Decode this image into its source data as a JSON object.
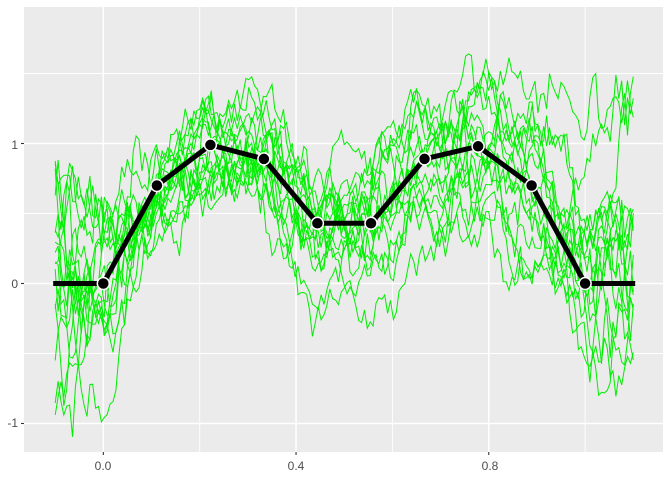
{
  "chart_data": {
    "type": "line",
    "title": "",
    "xlabel": "",
    "ylabel": "",
    "grid": "on",
    "legend": "none",
    "colors": {
      "outer_bg": "#FFFFFF",
      "panel_bg": "#EBEBEB",
      "grid_major": "#FFFFFF",
      "grid_minor": "#FFFFFF",
      "tick": "#333333",
      "axis_text": "#4D4D4D",
      "noise_line": "#00EE00",
      "mean_line": "#000000",
      "point_fill": "#000000",
      "point_stroke": "#FFFFFF"
    },
    "x_axis": {
      "range": [
        -0.1647,
        1.1617
      ],
      "tick_values": [
        0.0,
        0.4,
        0.8
      ],
      "tick_labels": [
        "0.0",
        "0.4",
        "0.8"
      ],
      "minor_values": [
        0.2,
        0.6,
        1.0
      ]
    },
    "y_axis": {
      "range": [
        -1.2036,
        1.975
      ],
      "tick_values": [
        -1,
        0,
        1
      ],
      "tick_labels": [
        "-1",
        "0",
        "1"
      ],
      "minor_values": [
        -0.5,
        0.5,
        1.5
      ]
    },
    "mean_series": {
      "name": "piecewise-linear mean curve with knot points",
      "x": [
        0,
        0.1111,
        0.2222,
        0.3333,
        0.4444,
        0.5556,
        0.6667,
        0.7778,
        0.8889,
        1.0
      ],
      "y": [
        0,
        0.7,
        0.99,
        0.89,
        0.43,
        0.43,
        0.89,
        0.98,
        0.7,
        0
      ],
      "flat_ext": {
        "left_x": -0.104,
        "right_x": 1.104,
        "y": 0
      },
      "line_width": 5,
      "marker": {
        "radius": 6,
        "stroke_width": 1.5
      }
    },
    "noise_series": {
      "name": "noisy simulated realizations",
      "count": 16,
      "x_start": -0.1,
      "x_end": 1.1,
      "points": 201,
      "line_width": 1,
      "seed": 11,
      "ar_phi": 0.955,
      "walk_sd": 0.085,
      "jitter": 0.05,
      "init_sd": 0.28,
      "edge_boost": {
        "start": 0.42,
        "ramp": 0.18,
        "amount": 0.9
      },
      "features": [
        {
          "line": 2,
          "x": 0.742,
          "height": 0.9,
          "width": 0.016
        },
        {
          "line": 5,
          "x": -0.082,
          "height": -0.75,
          "width": 0.014
        },
        {
          "line": 9,
          "x": 1.055,
          "height": -0.5,
          "width": 0.02
        }
      ]
    }
  }
}
